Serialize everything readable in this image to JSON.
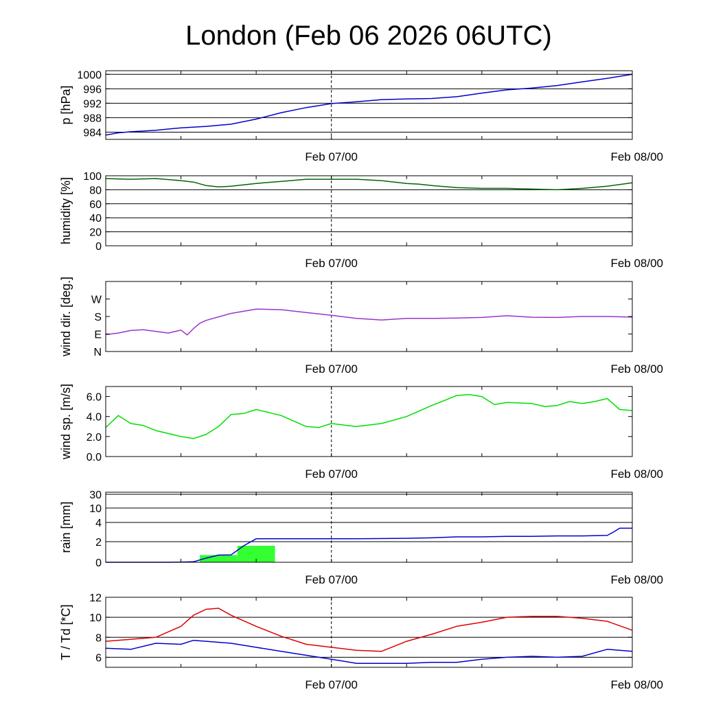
{
  "title": "London (Feb 06 2026 06UTC)",
  "x_axis": {
    "start": "Feb 06/06",
    "end": "Feb 08/00",
    "labels": [
      "Feb 07/00",
      "Feb 08/00"
    ],
    "marker": "Feb 07/00"
  },
  "chart_data": [
    {
      "type": "line",
      "ylabel": "p [hPa]",
      "ylim": [
        982,
        1001
      ],
      "yticks": [
        984,
        988,
        992,
        996,
        1000
      ],
      "ytick_labels": [
        "984",
        "988",
        "992",
        "996",
        "1000"
      ],
      "gridlines": [
        984,
        988,
        992,
        996,
        1000
      ],
      "series": [
        {
          "color": "#0000cc",
          "x": [
            0,
            1,
            2,
            3,
            4,
            6,
            8,
            10,
            12,
            14,
            16,
            18,
            20,
            22,
            24,
            26,
            28,
            30,
            32,
            34,
            36,
            38,
            40,
            42
          ],
          "y": [
            983.2,
            983.8,
            984.1,
            984.3,
            984.5,
            985.2,
            985.6,
            986.2,
            987.6,
            989.4,
            990.8,
            991.9,
            992.4,
            993.0,
            993.2,
            993.3,
            993.8,
            994.8,
            995.7,
            996.2,
            996.9,
            997.9,
            998.9,
            1000.0
          ]
        }
      ]
    },
    {
      "type": "line",
      "ylabel": "humidity [%]",
      "ylim": [
        0,
        100
      ],
      "yticks": [
        0,
        20,
        40,
        60,
        80,
        100
      ],
      "ytick_labels": [
        "0",
        "20",
        "40",
        "60",
        "80",
        "100"
      ],
      "gridlines": [
        20,
        40,
        60,
        80
      ],
      "series": [
        {
          "color": "#006600",
          "x": [
            0,
            2,
            4,
            6,
            7,
            8,
            9,
            10,
            12,
            14,
            16,
            18,
            20,
            22,
            24,
            25,
            26,
            28,
            30,
            32,
            34,
            36,
            38,
            40,
            42
          ],
          "y": [
            96,
            95,
            96,
            93,
            91,
            86,
            84,
            85,
            89,
            92,
            95,
            95,
            95,
            93,
            89,
            88,
            86,
            83,
            82,
            82,
            81,
            80,
            82,
            85,
            90
          ]
        }
      ]
    },
    {
      "type": "line",
      "ylabel": "wind dir. [deg.]",
      "ylim": [
        0,
        360
      ],
      "yticks": [
        0,
        90,
        180,
        270
      ],
      "ytick_labels": [
        "N",
        "E",
        "S",
        "W"
      ],
      "gridlines": [],
      "series": [
        {
          "color": "#9933cc",
          "x": [
            0,
            1,
            2,
            3,
            4,
            5,
            6,
            6.5,
            7,
            7.5,
            8,
            10,
            12,
            14,
            16,
            18,
            20,
            22,
            24,
            26,
            28,
            30,
            32,
            34,
            36,
            38,
            40,
            42
          ],
          "y": [
            87,
            95,
            108,
            112,
            103,
            95,
            110,
            85,
            118,
            145,
            160,
            196,
            218,
            215,
            200,
            186,
            170,
            162,
            170,
            170,
            172,
            175,
            184,
            176,
            175,
            180,
            180,
            177
          ]
        }
      ]
    },
    {
      "type": "line",
      "ylabel": "wind sp. [m/s]",
      "ylim": [
        0,
        7
      ],
      "yticks": [
        0,
        2,
        4,
        6
      ],
      "ytick_labels": [
        "0.0",
        "2.0",
        "4.0",
        "6.0"
      ],
      "gridlines": [],
      "series": [
        {
          "color": "#00dd00",
          "x": [
            0,
            1,
            2,
            3,
            4,
            5,
            6,
            7,
            8,
            9,
            10,
            11,
            12,
            14,
            16,
            17,
            18,
            20,
            22,
            24,
            26,
            27,
            28,
            29,
            30,
            31,
            32,
            34,
            35,
            36,
            37,
            38,
            39,
            40,
            41,
            42
          ],
          "y": [
            2.9,
            4.1,
            3.3,
            3.1,
            2.6,
            2.3,
            2.0,
            1.8,
            2.2,
            3.0,
            4.2,
            4.3,
            4.7,
            4.1,
            3.0,
            2.9,
            3.3,
            3.0,
            3.3,
            4.0,
            5.1,
            5.6,
            6.1,
            6.2,
            6.0,
            5.2,
            5.4,
            5.3,
            5.0,
            5.1,
            5.5,
            5.3,
            5.5,
            5.8,
            4.7,
            4.6
          ]
        }
      ]
    },
    {
      "type": "bar",
      "ylabel": "rain [mm]",
      "scale": "nonlinear",
      "yticks": [
        0,
        2,
        4,
        10,
        30
      ],
      "ytick_labels": [
        "0",
        "2",
        "4",
        "10",
        "30"
      ],
      "gridlines": [
        2,
        4,
        10,
        30
      ],
      "bars": [
        {
          "x0": 7.5,
          "x1": 10.5,
          "value": 0.7
        },
        {
          "x0": 10.5,
          "x1": 13.5,
          "value": 1.6
        }
      ],
      "bar_color": "#33ff33",
      "series": [
        {
          "color": "#0000cc",
          "x": [
            0,
            5,
            6,
            7,
            8,
            9,
            10,
            11,
            12,
            14,
            16,
            18,
            20,
            24,
            26,
            28,
            30,
            32,
            34,
            36,
            38,
            40,
            40.5,
            41,
            42
          ],
          "y": [
            0,
            0,
            0.02,
            0.05,
            0.4,
            0.7,
            0.72,
            1.6,
            2.3,
            2.3,
            2.3,
            2.3,
            2.3,
            2.35,
            2.4,
            2.5,
            2.5,
            2.55,
            2.55,
            2.6,
            2.6,
            2.65,
            3.0,
            3.4,
            3.4
          ]
        }
      ]
    },
    {
      "type": "line",
      "ylabel": "T / Td [*C]",
      "ylim": [
        5,
        12
      ],
      "yticks": [
        6,
        8,
        10,
        12
      ],
      "ytick_labels": [
        "6",
        "8",
        "10",
        "12"
      ],
      "gridlines": [
        6,
        8,
        10
      ],
      "series": [
        {
          "name": "T",
          "color": "#dd0000",
          "x": [
            0,
            2,
            4,
            6,
            7,
            8,
            9,
            10,
            12,
            14,
            16,
            18,
            20,
            22,
            23,
            24,
            26,
            28,
            30,
            32,
            34,
            36,
            38,
            40,
            42
          ],
          "y": [
            7.6,
            7.8,
            8.0,
            9.1,
            10.2,
            10.8,
            10.9,
            10.2,
            9.1,
            8.1,
            7.3,
            7.0,
            6.7,
            6.6,
            7.1,
            7.6,
            8.3,
            9.1,
            9.5,
            10.0,
            10.1,
            10.1,
            9.9,
            9.6,
            8.7
          ]
        },
        {
          "name": "Td",
          "color": "#0000cc",
          "x": [
            0,
            2,
            4,
            6,
            7,
            8,
            10,
            12,
            14,
            16,
            18,
            20,
            22,
            24,
            26,
            28,
            30,
            32,
            34,
            36,
            38,
            40,
            42
          ],
          "y": [
            6.9,
            6.8,
            7.4,
            7.3,
            7.7,
            7.6,
            7.4,
            7.0,
            6.6,
            6.2,
            5.8,
            5.4,
            5.4,
            5.4,
            5.5,
            5.5,
            5.8,
            6.0,
            6.1,
            6.0,
            6.1,
            6.8,
            6.6
          ]
        }
      ]
    }
  ]
}
